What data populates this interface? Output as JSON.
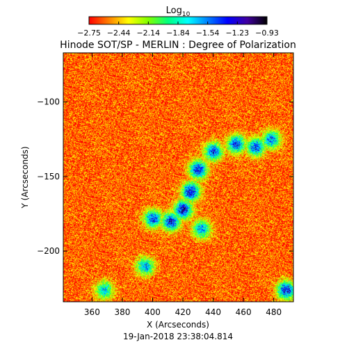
{
  "chart_data": {
    "type": "heatmap",
    "title": "Hinode SOT/SP - MERLIN : Degree of Polarization",
    "timestamp": "19-Jan-2018 23:38:04.814",
    "xlabel": "X (Arcseconds)",
    "ylabel": "Y (Arcseconds)",
    "xlim": [
      341,
      493
    ],
    "ylim": [
      -234,
      -67
    ],
    "x_ticks": [
      {
        "value": 360,
        "label": "360"
      },
      {
        "value": 380,
        "label": "380"
      },
      {
        "value": 400,
        "label": "400"
      },
      {
        "value": 420,
        "label": "420"
      },
      {
        "value": 440,
        "label": "440"
      },
      {
        "value": 460,
        "label": "460"
      },
      {
        "value": 480,
        "label": "480"
      }
    ],
    "y_ticks": [
      {
        "value": -100,
        "label": "−100"
      },
      {
        "value": -150,
        "label": "−150"
      },
      {
        "value": -200,
        "label": "−200"
      }
    ],
    "colorbar": {
      "title_base": "Log",
      "title_sub": "10",
      "range": [
        -2.75,
        -0.93
      ],
      "ticks": [
        "−2.75",
        "−2.44",
        "−2.14",
        "−1.84",
        "−1.54",
        "−1.23",
        "−0.93"
      ],
      "colormap": [
        "#ff0000",
        "#ff8000",
        "#ffff00",
        "#80ff00",
        "#00ff80",
        "#00ffff",
        "#0080ff",
        "#0000ff",
        "#4000a0",
        "#000000"
      ]
    },
    "field": {
      "background_level": -2.6,
      "features": [
        {
          "kind": "arc-core",
          "x": 425,
          "y": -160,
          "level": -1.2
        },
        {
          "kind": "arc-core",
          "x": 420,
          "y": -172,
          "level": -1.2
        },
        {
          "kind": "arc-core",
          "x": 412,
          "y": -180,
          "level": -1.3
        },
        {
          "kind": "arc-core",
          "x": 400,
          "y": -178,
          "level": -1.4
        },
        {
          "kind": "arc-core",
          "x": 430,
          "y": -145,
          "level": -1.3
        },
        {
          "kind": "arc-core",
          "x": 440,
          "y": -133,
          "level": -1.4
        },
        {
          "kind": "arc-core",
          "x": 455,
          "y": -128,
          "level": -1.4
        },
        {
          "kind": "arc-core",
          "x": 468,
          "y": -130,
          "level": -1.4
        },
        {
          "kind": "arc-core",
          "x": 478,
          "y": -125,
          "level": -1.5
        },
        {
          "kind": "arc-core",
          "x": 432,
          "y": -185,
          "level": -1.6
        },
        {
          "kind": "arc-core",
          "x": 395,
          "y": -210,
          "level": -1.6
        },
        {
          "kind": "arc-core",
          "x": 488,
          "y": -226,
          "level": -1.3
        },
        {
          "kind": "arc-core",
          "x": 368,
          "y": -226,
          "level": -1.7
        }
      ]
    }
  }
}
